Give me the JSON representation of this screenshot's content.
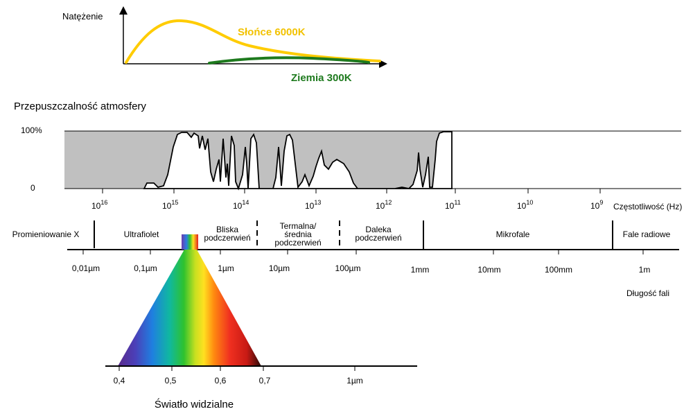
{
  "intensity": {
    "title": "Natężenie",
    "sun_label": "Słońce 6000K",
    "earth_label": "Ziemia 300K",
    "sun_color": "#ffcc00",
    "earth_color": "#1e7a1e"
  },
  "transmission": {
    "title": "Przepuszczalność atmosfery",
    "y_top": "100%",
    "y_bottom": "0",
    "fill_color": "#c0c0c0"
  },
  "frequency_axis": {
    "ticks": [
      {
        "base": "10",
        "exp": "16"
      },
      {
        "base": "10",
        "exp": "15"
      },
      {
        "base": "10",
        "exp": "14"
      },
      {
        "base": "10",
        "exp": "13"
      },
      {
        "base": "10",
        "exp": "12"
      },
      {
        "base": "10",
        "exp": "11"
      },
      {
        "base": "10",
        "exp": "10"
      },
      {
        "base": "10",
        "exp": "9"
      }
    ],
    "label": "Częstotliwość (Hz)"
  },
  "bands": {
    "xray": "Promieniowanie X",
    "uv": "Ultrafiolet",
    "nir": [
      "Bliska",
      "podczerwień"
    ],
    "tir": [
      "Termalna/",
      "średnia",
      "podczerwień"
    ],
    "fir": [
      "Daleka",
      "podczerwień"
    ],
    "microwave": "Mikrofale",
    "radio": "Fale radiowe"
  },
  "wavelength_axis": {
    "ticks": [
      "0,01µm",
      "0,1µm",
      "1µm",
      "10µm",
      "100µm",
      "1mm",
      "10mm",
      "100mm",
      "1m"
    ],
    "label": "Długość fali"
  },
  "visible_axis": {
    "ticks": [
      "0,4",
      "0,5",
      "0,6",
      "0,7",
      "1µm"
    ],
    "label": "Światło widzialne"
  }
}
